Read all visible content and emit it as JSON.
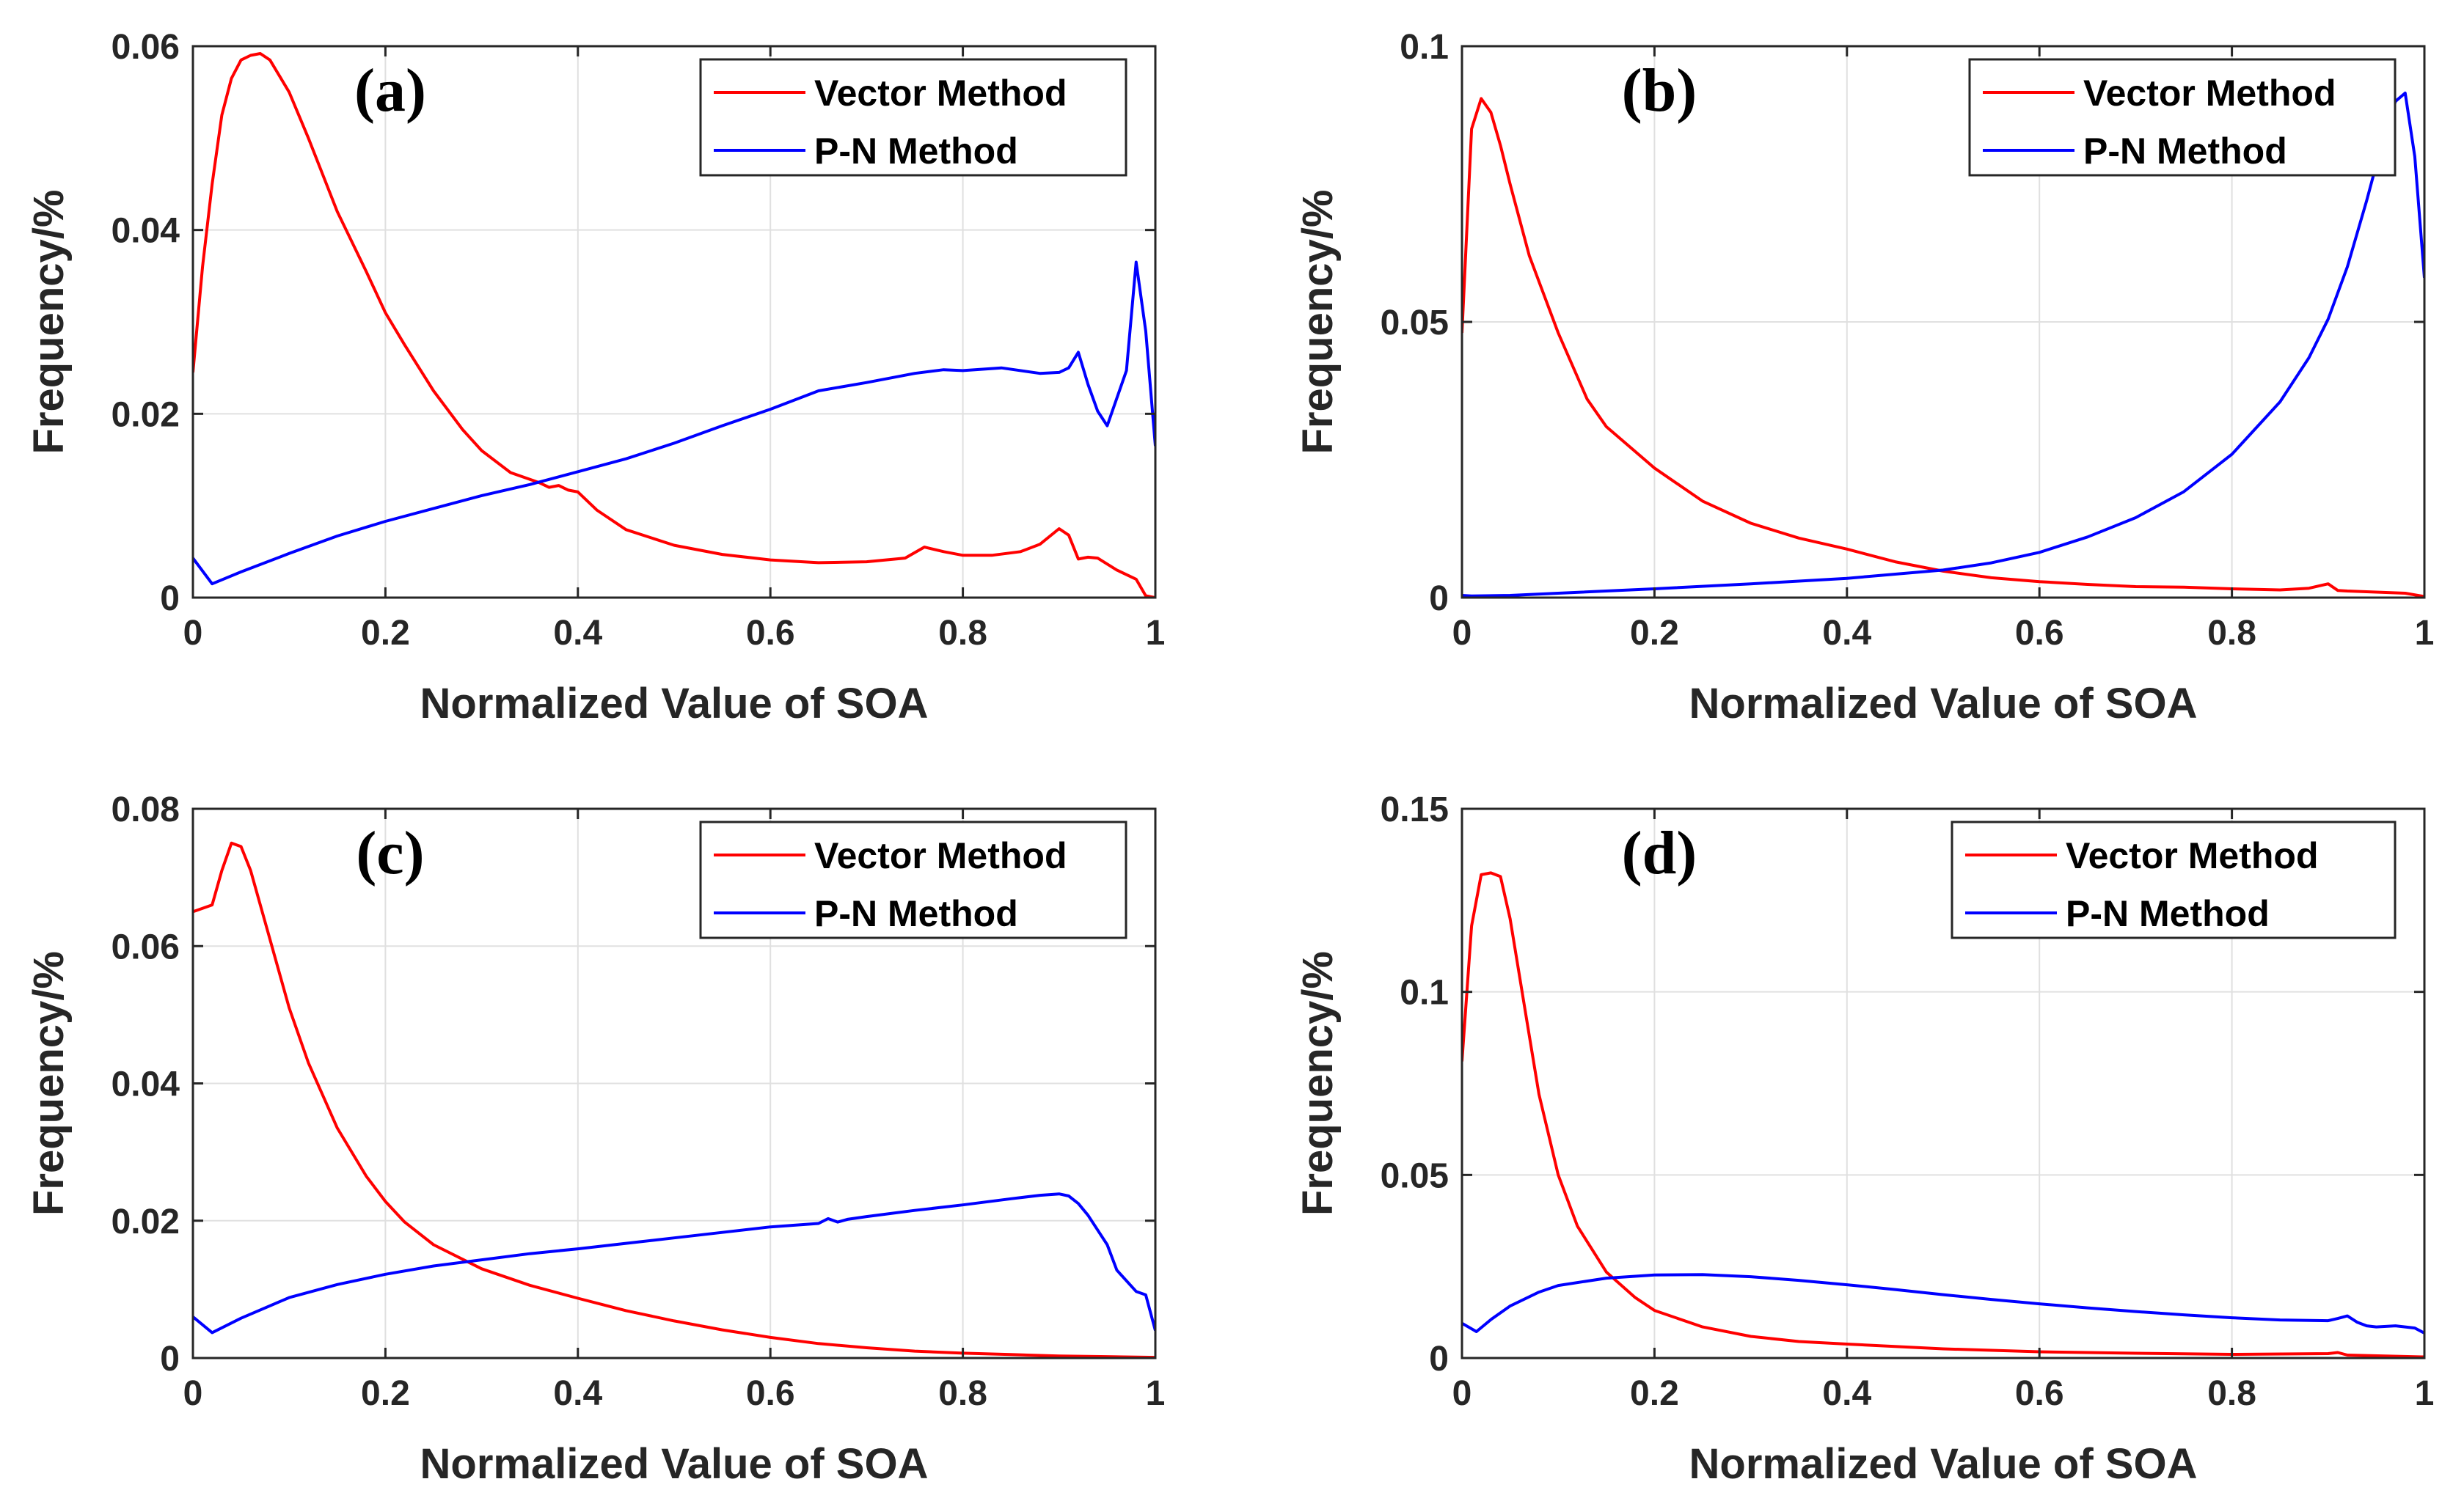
{
  "chart_data": [
    {
      "type": "line",
      "panel_label": "(a)",
      "xlabel": "Normalized Value of SOA",
      "ylabel": "Frequency/%",
      "xlim": [
        0,
        1
      ],
      "ylim": [
        0,
        0.06
      ],
      "xticks": [
        0,
        0.2,
        0.4,
        0.6,
        0.8,
        1
      ],
      "xtick_labels": [
        "0",
        "0.2",
        "0.4",
        "0.6",
        "0.8",
        "1"
      ],
      "yticks": [
        0,
        0.02,
        0.04,
        0.06
      ],
      "ytick_labels": [
        "0",
        "0.02",
        "0.04",
        "0.06"
      ],
      "grid": true,
      "legend_position": "top-right",
      "series": [
        {
          "name": "Vector Method",
          "color": "#ff0000",
          "x": [
            0,
            0.01,
            0.02,
            0.03,
            0.04,
            0.05,
            0.06,
            0.07,
            0.08,
            0.1,
            0.12,
            0.15,
            0.18,
            0.2,
            0.22,
            0.25,
            0.28,
            0.3,
            0.33,
            0.36,
            0.37,
            0.38,
            0.39,
            0.4,
            0.42,
            0.45,
            0.5,
            0.55,
            0.6,
            0.65,
            0.7,
            0.74,
            0.76,
            0.78,
            0.8,
            0.83,
            0.86,
            0.88,
            0.9,
            0.91,
            0.92,
            0.93,
            0.94,
            0.96,
            0.98,
            0.99,
            1.0
          ],
          "y": [
            0.0245,
            0.036,
            0.045,
            0.0525,
            0.0565,
            0.0585,
            0.059,
            0.0592,
            0.0585,
            0.055,
            0.05,
            0.042,
            0.0355,
            0.031,
            0.0275,
            0.0225,
            0.0183,
            0.016,
            0.0136,
            0.0125,
            0.012,
            0.0122,
            0.0117,
            0.0115,
            0.0095,
            0.0074,
            0.0057,
            0.0047,
            0.0041,
            0.0038,
            0.0039,
            0.0043,
            0.0055,
            0.005,
            0.0046,
            0.0046,
            0.005,
            0.0058,
            0.0075,
            0.0068,
            0.0042,
            0.0044,
            0.0043,
            0.003,
            0.002,
            0.0002,
            0.0
          ]
        },
        {
          "name": "P-N Method",
          "color": "#0000ff",
          "x": [
            0,
            0.02,
            0.05,
            0.1,
            0.15,
            0.2,
            0.25,
            0.3,
            0.35,
            0.4,
            0.45,
            0.5,
            0.55,
            0.6,
            0.65,
            0.7,
            0.75,
            0.78,
            0.8,
            0.84,
            0.88,
            0.9,
            0.91,
            0.92,
            0.93,
            0.94,
            0.95,
            0.97,
            0.98,
            0.99,
            1.0
          ],
          "y": [
            0.0043,
            0.0015,
            0.0028,
            0.0048,
            0.0067,
            0.0083,
            0.0097,
            0.0111,
            0.0123,
            0.0137,
            0.0151,
            0.0168,
            0.0187,
            0.0205,
            0.0225,
            0.0234,
            0.0244,
            0.0248,
            0.0247,
            0.025,
            0.0244,
            0.0245,
            0.025,
            0.0267,
            0.0232,
            0.0203,
            0.0187,
            0.0247,
            0.0365,
            0.029,
            0.0165
          ]
        }
      ]
    },
    {
      "type": "line",
      "panel_label": "(b)",
      "xlabel": "Normalized Value of SOA",
      "ylabel": "Frequency/%",
      "xlim": [
        0,
        1
      ],
      "ylim": [
        0,
        0.1
      ],
      "xticks": [
        0,
        0.2,
        0.4,
        0.6,
        0.8,
        1
      ],
      "xtick_labels": [
        "0",
        "0.2",
        "0.4",
        "0.6",
        "0.8",
        "1"
      ],
      "yticks": [
        0,
        0.05,
        0.1
      ],
      "ytick_labels": [
        "0",
        "0.05",
        "0.1"
      ],
      "grid": true,
      "legend_position": "top-right",
      "series": [
        {
          "name": "Vector Method",
          "color": "#ff0000",
          "x": [
            0,
            0.01,
            0.02,
            0.03,
            0.04,
            0.05,
            0.07,
            0.1,
            0.13,
            0.15,
            0.2,
            0.25,
            0.3,
            0.35,
            0.4,
            0.45,
            0.5,
            0.55,
            0.6,
            0.65,
            0.7,
            0.75,
            0.8,
            0.85,
            0.88,
            0.9,
            0.91,
            0.92,
            0.95,
            0.98,
            1.0
          ],
          "y": [
            0.048,
            0.085,
            0.0905,
            0.088,
            0.082,
            0.075,
            0.062,
            0.048,
            0.036,
            0.031,
            0.0235,
            0.0175,
            0.0135,
            0.0108,
            0.0088,
            0.0065,
            0.0048,
            0.0036,
            0.0029,
            0.0024,
            0.002,
            0.0019,
            0.0016,
            0.0014,
            0.0017,
            0.0025,
            0.0013,
            0.0012,
            0.001,
            0.0008,
            0.0002
          ]
        },
        {
          "name": "P-N Method",
          "color": "#0000ff",
          "x": [
            0,
            0.01,
            0.05,
            0.1,
            0.2,
            0.3,
            0.4,
            0.5,
            0.55,
            0.6,
            0.65,
            0.7,
            0.75,
            0.8,
            0.85,
            0.88,
            0.9,
            0.92,
            0.94,
            0.96,
            0.97,
            0.98,
            0.99,
            1.0
          ],
          "y": [
            0.0004,
            0.0003,
            0.0004,
            0.0008,
            0.0016,
            0.0025,
            0.0035,
            0.005,
            0.0063,
            0.0082,
            0.011,
            0.0145,
            0.0192,
            0.026,
            0.0355,
            0.0435,
            0.0505,
            0.06,
            0.072,
            0.085,
            0.09,
            0.0915,
            0.08,
            0.058
          ]
        }
      ]
    },
    {
      "type": "line",
      "panel_label": "(c)",
      "xlabel": "Normalized Value of SOA",
      "ylabel": "Frequency/%",
      "xlim": [
        0,
        1
      ],
      "ylim": [
        0,
        0.08
      ],
      "xticks": [
        0,
        0.2,
        0.4,
        0.6,
        0.8,
        1
      ],
      "xtick_labels": [
        "0",
        "0.2",
        "0.4",
        "0.6",
        "0.8",
        "1"
      ],
      "yticks": [
        0,
        0.02,
        0.04,
        0.06,
        0.08
      ],
      "ytick_labels": [
        "0",
        "0.02",
        "0.04",
        "0.06",
        "0.08"
      ],
      "grid": true,
      "legend_position": "top-right",
      "series": [
        {
          "name": "Vector Method",
          "color": "#ff0000",
          "x": [
            0,
            0.02,
            0.03,
            0.04,
            0.05,
            0.06,
            0.08,
            0.1,
            0.12,
            0.15,
            0.18,
            0.2,
            0.22,
            0.25,
            0.3,
            0.35,
            0.4,
            0.45,
            0.5,
            0.55,
            0.6,
            0.65,
            0.7,
            0.75,
            0.8,
            0.85,
            0.9,
            0.95,
            1.0
          ],
          "y": [
            0.065,
            0.066,
            0.071,
            0.075,
            0.0745,
            0.071,
            0.061,
            0.051,
            0.043,
            0.0335,
            0.0265,
            0.0228,
            0.0198,
            0.0165,
            0.013,
            0.0106,
            0.0087,
            0.0069,
            0.0054,
            0.0041,
            0.003,
            0.0021,
            0.0015,
            0.001,
            0.0007,
            0.0005,
            0.0003,
            0.0002,
            0.0001
          ]
        },
        {
          "name": "P-N Method",
          "color": "#0000ff",
          "x": [
            0,
            0.02,
            0.05,
            0.1,
            0.15,
            0.2,
            0.25,
            0.3,
            0.35,
            0.4,
            0.45,
            0.5,
            0.55,
            0.6,
            0.65,
            0.66,
            0.67,
            0.68,
            0.7,
            0.75,
            0.8,
            0.85,
            0.88,
            0.9,
            0.91,
            0.92,
            0.93,
            0.95,
            0.96,
            0.98,
            0.99,
            1.0
          ],
          "y": [
            0.006,
            0.0037,
            0.0058,
            0.0088,
            0.0107,
            0.0122,
            0.0134,
            0.0143,
            0.0152,
            0.0159,
            0.0167,
            0.0175,
            0.0183,
            0.0191,
            0.0196,
            0.0203,
            0.0198,
            0.0202,
            0.0206,
            0.0215,
            0.0223,
            0.0232,
            0.0237,
            0.0239,
            0.0236,
            0.0225,
            0.0208,
            0.0165,
            0.0128,
            0.0097,
            0.0092,
            0.004
          ]
        }
      ]
    },
    {
      "type": "line",
      "panel_label": "(d)",
      "xlabel": "Normalized Value of SOA",
      "ylabel": "Frequency/%",
      "xlim": [
        0,
        1
      ],
      "ylim": [
        0,
        0.15
      ],
      "xticks": [
        0,
        0.2,
        0.4,
        0.6,
        0.8,
        1
      ],
      "xtick_labels": [
        "0",
        "0.2",
        "0.4",
        "0.6",
        "0.8",
        "1"
      ],
      "yticks": [
        0,
        0.05,
        0.1,
        0.15
      ],
      "ytick_labels": [
        "0",
        "0.05",
        "0.1",
        "0.15"
      ],
      "grid": true,
      "legend_position": "top-right",
      "series": [
        {
          "name": "Vector Method",
          "color": "#ff0000",
          "x": [
            0,
            0.01,
            0.02,
            0.03,
            0.04,
            0.05,
            0.06,
            0.07,
            0.08,
            0.1,
            0.12,
            0.15,
            0.18,
            0.2,
            0.25,
            0.3,
            0.35,
            0.4,
            0.5,
            0.6,
            0.7,
            0.8,
            0.9,
            0.91,
            0.92,
            1.0
          ],
          "y": [
            0.081,
            0.118,
            0.132,
            0.1325,
            0.1315,
            0.12,
            0.104,
            0.088,
            0.072,
            0.05,
            0.036,
            0.0235,
            0.0165,
            0.013,
            0.0085,
            0.0059,
            0.0045,
            0.0038,
            0.0025,
            0.0017,
            0.0013,
            0.001,
            0.0012,
            0.0015,
            0.0008,
            0.0003
          ]
        },
        {
          "name": "P-N Method",
          "color": "#0000ff",
          "x": [
            0,
            0.015,
            0.03,
            0.05,
            0.08,
            0.1,
            0.15,
            0.2,
            0.25,
            0.3,
            0.35,
            0.4,
            0.45,
            0.5,
            0.55,
            0.6,
            0.65,
            0.7,
            0.75,
            0.8,
            0.85,
            0.9,
            0.91,
            0.92,
            0.93,
            0.94,
            0.95,
            0.97,
            0.98,
            0.99,
            1.0
          ],
          "y": [
            0.0095,
            0.0072,
            0.0105,
            0.0142,
            0.018,
            0.0198,
            0.0218,
            0.0227,
            0.0228,
            0.0222,
            0.0212,
            0.02,
            0.0187,
            0.0173,
            0.016,
            0.0148,
            0.0137,
            0.0127,
            0.0118,
            0.011,
            0.0104,
            0.0102,
            0.0108,
            0.0115,
            0.0098,
            0.0088,
            0.0085,
            0.0088,
            0.0085,
            0.0082,
            0.0068
          ]
        }
      ]
    }
  ]
}
